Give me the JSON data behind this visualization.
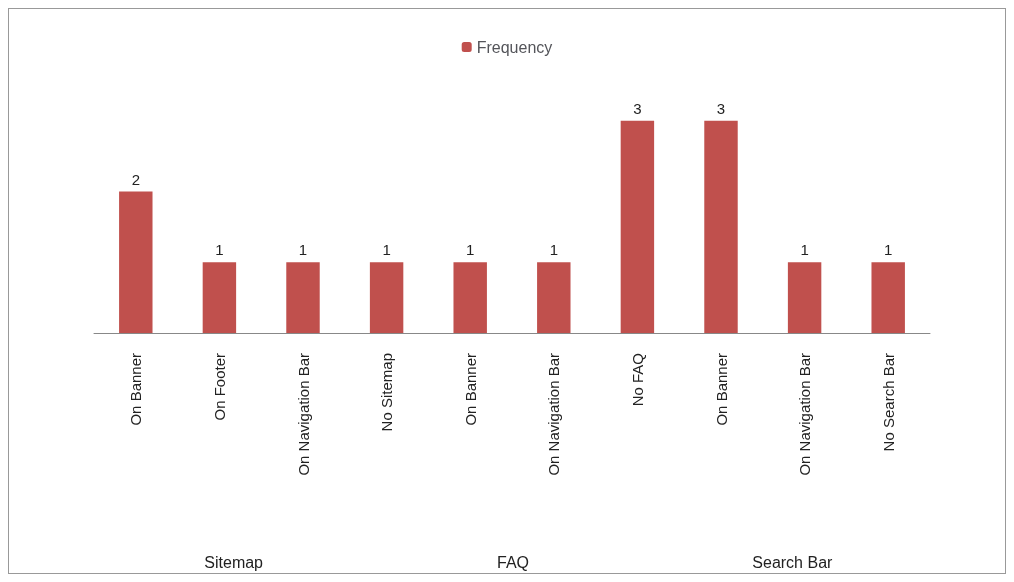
{
  "chart_data": {
    "type": "bar",
    "categories": [
      "On Banner",
      "On Footer",
      "On Navigation Bar",
      "No Sitemap",
      "On Banner",
      "On Navigation Bar",
      "No FAQ",
      "On Banner",
      "On Navigation Bar",
      "No Search Bar"
    ],
    "series": [
      {
        "name": "Frequency",
        "color": "#c0504d",
        "values": [
          2,
          1,
          1,
          1,
          1,
          1,
          3,
          3,
          1,
          1
        ]
      }
    ],
    "data_labels": true,
    "legend": "top",
    "grid": false,
    "annotations": [
      "Sitemap",
      "FAQ",
      "Search Bar"
    ]
  }
}
